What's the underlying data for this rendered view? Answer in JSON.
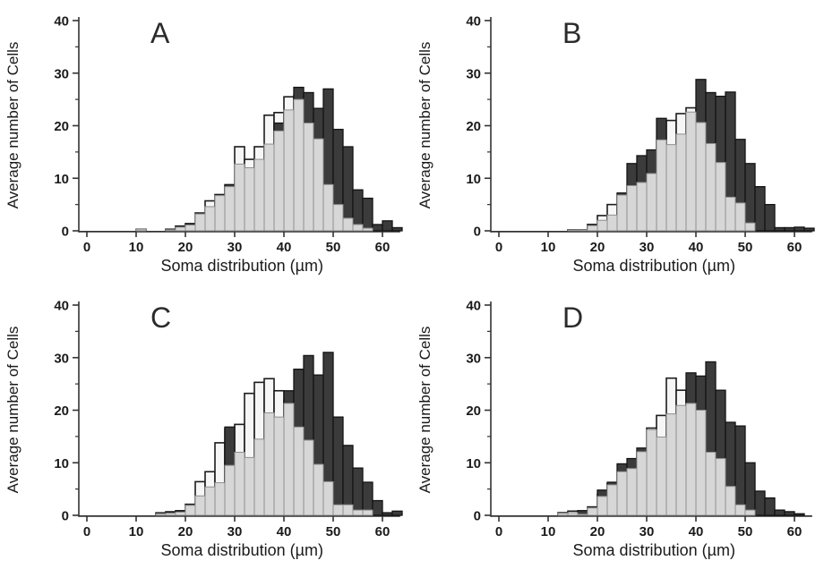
{
  "figure": {
    "background": "#ffffff",
    "xlabel": "Soma distribution (µm)",
    "ylabel": "Average number of Cells",
    "x_ticks": [
      0,
      10,
      20,
      30,
      40,
      50,
      60
    ],
    "y_ticks": [
      0,
      10,
      20,
      30,
      40
    ],
    "y_minor_ticks": [
      5,
      15,
      25,
      35
    ],
    "xlim": [
      0,
      63.6
    ],
    "ylim": [
      0,
      40
    ],
    "grid": false,
    "legend": "none",
    "draw_order": [
      "white",
      "dark_gray",
      "light_gray"
    ],
    "series_styles": {
      "white": {
        "fill": "#f6f6f6",
        "stroke": "#1c1c1c"
      },
      "light_gray": {
        "fill": "#d7d7d7",
        "stroke": "#8f8f8f"
      },
      "dark_gray": {
        "fill": "#3b3b3b",
        "stroke": "#141414"
      }
    },
    "axis_color": "#333333",
    "text_color": "#1a1a1a",
    "panel_letter_color": "#2b2b2b"
  },
  "chart_data": [
    {
      "label": "A",
      "type": "bar",
      "title": "",
      "xlabel": "Soma distribution (µm)",
      "ylabel": "Average number of Cells",
      "bin_width": 2,
      "bin_starts": [
        10,
        12,
        14,
        16,
        18,
        20,
        22,
        24,
        26,
        28,
        30,
        32,
        34,
        36,
        38,
        40,
        42,
        44,
        46,
        48,
        50,
        52,
        54,
        56,
        58,
        60,
        62
      ],
      "series": [
        {
          "name": "white",
          "values": [
            0.3,
            0,
            0,
            0.3,
            0.9,
            1.3,
            3.4,
            5.7,
            6.9,
            8.6,
            16,
            13.6,
            16,
            22,
            22.5,
            25.5,
            25.8,
            20.5,
            17.5,
            8.8,
            5,
            2.4,
            1.2,
            0.5,
            0,
            0,
            0
          ]
        },
        {
          "name": "light_gray",
          "values": [
            0.3,
            0,
            0,
            0.2,
            0.7,
            1.1,
            3.2,
            4.6,
            6.7,
            8.4,
            12.7,
            12,
            13.6,
            16.5,
            19,
            23,
            25,
            20.5,
            17.5,
            8.8,
            5,
            2.4,
            1.2,
            0.5,
            0,
            0,
            0
          ]
        },
        {
          "name": "dark_gray",
          "values": [
            0,
            0,
            0,
            0.3,
            0.9,
            1.4,
            0,
            0,
            0,
            8.8,
            0,
            0,
            0,
            0,
            20.5,
            0,
            27.3,
            26.3,
            23.3,
            27,
            19.3,
            16,
            7.8,
            6.2,
            1.2,
            1.9,
            0.6
          ]
        }
      ]
    },
    {
      "label": "B",
      "type": "bar",
      "title": "",
      "xlabel": "Soma distribution (µm)",
      "ylabel": "Average number of Cells",
      "bin_width": 2,
      "bin_starts": [
        10,
        12,
        14,
        16,
        18,
        20,
        22,
        24,
        26,
        28,
        30,
        32,
        34,
        36,
        38,
        40,
        42,
        44,
        46,
        48,
        50,
        52,
        54,
        56,
        58,
        60,
        62
      ],
      "series": [
        {
          "name": "white",
          "values": [
            0,
            0,
            0.2,
            0.2,
            1.2,
            2.9,
            5,
            6.8,
            8.6,
            9.2,
            10.9,
            17.3,
            21,
            22.3,
            23.4,
            20.6,
            16.6,
            13,
            6.4,
            5.3,
            1.5,
            0,
            0,
            0,
            0,
            0,
            0
          ]
        },
        {
          "name": "light_gray",
          "values": [
            0,
            0,
            0.2,
            0.2,
            1,
            2,
            3,
            6.8,
            8.6,
            9.2,
            10.9,
            17.3,
            16.4,
            18.4,
            22.6,
            20.6,
            16.6,
            13,
            6.4,
            5.3,
            1.5,
            0,
            0,
            0,
            0,
            0,
            0
          ]
        },
        {
          "name": "dark_gray",
          "values": [
            0,
            0,
            0.2,
            0,
            1.2,
            0,
            0,
            7.2,
            12.8,
            14.3,
            15.4,
            21.4,
            0,
            0,
            0,
            28.8,
            26.3,
            25.6,
            26.4,
            17.4,
            12.8,
            8.4,
            5,
            0.6,
            0.6,
            0.7,
            0.5
          ]
        }
      ]
    },
    {
      "label": "C",
      "type": "bar",
      "title": "",
      "xlabel": "Soma distribution (µm)",
      "ylabel": "Average number of Cells",
      "bin_width": 2,
      "bin_starts": [
        10,
        12,
        14,
        16,
        18,
        20,
        22,
        24,
        26,
        28,
        30,
        32,
        34,
        36,
        38,
        40,
        42,
        44,
        46,
        48,
        50,
        52,
        54,
        56,
        58,
        60,
        62
      ],
      "series": [
        {
          "name": "white",
          "values": [
            0,
            0,
            0.4,
            0.6,
            0.8,
            2.1,
            6.4,
            8.3,
            13.8,
            16.5,
            17.3,
            23.2,
            25.3,
            26,
            23.7,
            22,
            16.8,
            14.3,
            9.7,
            6.4,
            2,
            2,
            1,
            1,
            0,
            0,
            0
          ]
        },
        {
          "name": "light_gray",
          "values": [
            0,
            0,
            0.3,
            0.4,
            0.6,
            1.9,
            3.7,
            5.4,
            6.2,
            9.5,
            12,
            11,
            14.5,
            19.5,
            18.7,
            21.3,
            16.8,
            14.3,
            9.7,
            6.4,
            2,
            2,
            1,
            1,
            0,
            0,
            0
          ]
        },
        {
          "name": "dark_gray",
          "values": [
            0,
            0,
            0.5,
            0.7,
            0.9,
            0,
            0,
            0,
            0,
            16.8,
            0,
            0,
            0,
            0,
            0,
            23.7,
            27.8,
            30.4,
            26.7,
            31,
            18.7,
            13.3,
            9,
            6.3,
            2.8,
            0.5,
            0.8
          ]
        }
      ]
    },
    {
      "label": "D",
      "type": "bar",
      "title": "",
      "xlabel": "Soma distribution (µm)",
      "ylabel": "Average number of Cells",
      "bin_width": 2,
      "bin_starts": [
        10,
        12,
        14,
        16,
        18,
        20,
        22,
        24,
        26,
        28,
        30,
        32,
        34,
        36,
        38,
        40,
        42,
        44,
        46,
        48,
        50,
        52,
        54,
        56,
        58,
        60,
        62
      ],
      "series": [
        {
          "name": "white",
          "values": [
            0,
            0.5,
            0.8,
            0.2,
            1.6,
            4,
            6,
            8.3,
            8.9,
            12.1,
            16.6,
            19,
            26.1,
            23.8,
            23.8,
            20,
            12,
            10.8,
            5.5,
            2,
            1,
            0,
            0,
            0,
            0,
            0,
            0
          ]
        },
        {
          "name": "light_gray",
          "values": [
            0,
            0.4,
            0.5,
            0.2,
            1.4,
            3.6,
            5.8,
            8.3,
            8.9,
            12.1,
            16.3,
            14.9,
            19.3,
            20.9,
            21.3,
            20,
            12,
            10.8,
            5.5,
            2,
            1,
            0,
            0,
            0,
            0,
            0,
            0
          ]
        },
        {
          "name": "dark_gray",
          "values": [
            0,
            0,
            0,
            0.9,
            0,
            4.8,
            6.3,
            9.8,
            10.8,
            12.8,
            0,
            0,
            0,
            0,
            27.1,
            26.5,
            29.2,
            23.8,
            17.7,
            17,
            10,
            4.6,
            3.3,
            1,
            0.7,
            0.3,
            0
          ]
        }
      ]
    }
  ]
}
